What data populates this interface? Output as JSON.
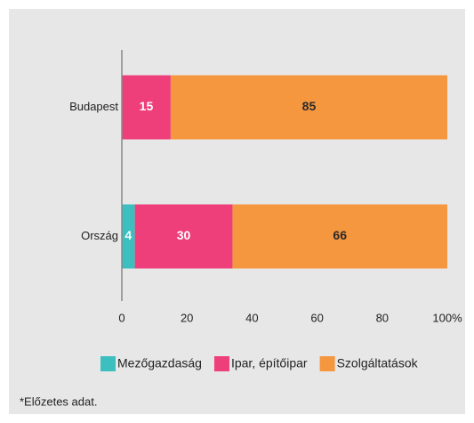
{
  "chart_data": {
    "type": "stacked-bar-horizontal",
    "categories": [
      "Budapest",
      "Ország"
    ],
    "series": [
      {
        "name": "Mezőgazdaság",
        "color": "#3dbfbf",
        "label_color": "#ffffff",
        "values": [
          0,
          4
        ]
      },
      {
        "name": "Ipar, építőipar",
        "color": "#ee3f7a",
        "label_color": "#ffffff",
        "values": [
          15,
          30
        ]
      },
      {
        "name": "Szolgáltatások",
        "color": "#f5973f",
        "label_color": "#2a2a2a",
        "values": [
          85,
          66
        ]
      }
    ],
    "xlim": [
      0,
      100
    ],
    "xticks": [
      0,
      20,
      40,
      60,
      80,
      {
        "value": 100,
        "label": "100%"
      }
    ],
    "legend": "bottom",
    "note": "*Előzetes adat."
  }
}
